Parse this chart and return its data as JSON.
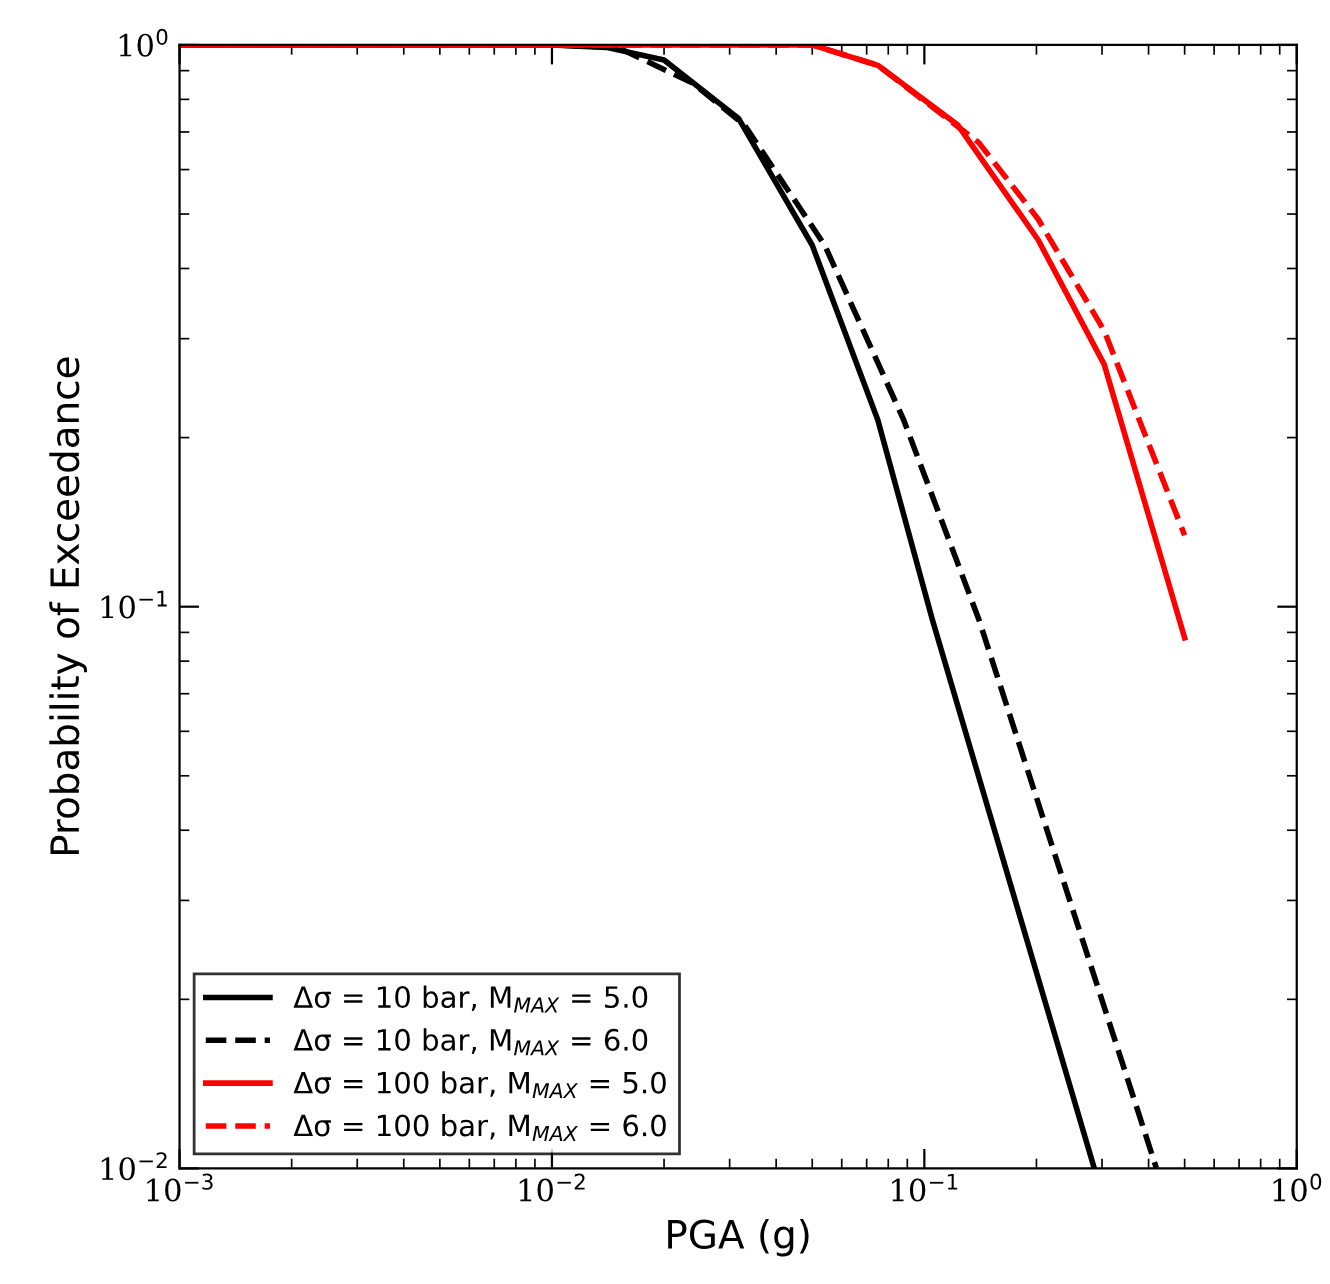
{
  "chart_data": {
    "type": "line",
    "xlabel": "PGA (g)",
    "ylabel": "Probability of Exceedance",
    "log": "xy",
    "xlim": [
      0.001,
      1
    ],
    "ylim": [
      0.01,
      1
    ],
    "xticks": [
      {
        "value": 0.001,
        "label": "10$^{−3}$"
      },
      {
        "value": 0.01,
        "label": "10$^{−2}$"
      },
      {
        "value": 0.1,
        "label": "10$^{−1}$"
      },
      {
        "value": 1,
        "label": "10$^{0}$"
      }
    ],
    "yticks": [
      {
        "value": 0.01,
        "label": "10$^{−2}$"
      },
      {
        "value": 0.1,
        "label": "10$^{−1}$"
      },
      {
        "value": 1,
        "label": "10$^{0}$"
      }
    ],
    "grid": false,
    "legend": "bottom left",
    "series": [
      {
        "name": "Δσ = 10 bar, M$_{MAX}$ = 5.0",
        "color": "#000000",
        "line_style": "solid",
        "x": [
          0.001,
          0.01,
          0.014,
          0.02,
          0.0317,
          0.05,
          0.075,
          0.105,
          0.286
        ],
        "values": [
          1,
          1,
          0.99,
          0.94,
          0.74,
          0.44,
          0.215,
          0.095,
          0.01
        ]
      },
      {
        "name": "Δσ = 10 bar, M$_{MAX}$ = 6.0",
        "color": "#000000",
        "line_style": "dashed",
        "x": [
          0.001,
          0.01,
          0.015,
          0.0239,
          0.0329,
          0.054,
          0.088,
          0.14,
          0.42
        ],
        "values": [
          1,
          1,
          0.99,
          0.855,
          0.72,
          0.44,
          0.215,
          0.095,
          0.01
        ]
      },
      {
        "name": "Δσ = 100 bar, M$_{MAX}$ = 5.0",
        "color": "#ff0000",
        "line_style": "solid",
        "x": [
          0.001,
          0.01,
          0.05,
          0.075,
          0.123,
          0.202,
          0.304,
          0.5
        ],
        "values": [
          1,
          1,
          1,
          0.92,
          0.72,
          0.45,
          0.27,
          0.088
        ]
      },
      {
        "name": "Δσ = 100 bar, M$_{MAX}$ = 6.0",
        "color": "#ff0000",
        "line_style": "dashed",
        "x": [
          0.001,
          0.01,
          0.05,
          0.075,
          0.14,
          0.202,
          0.304,
          0.5
        ],
        "values": [
          1,
          1,
          1,
          0.92,
          0.67,
          0.49,
          0.31,
          0.134
        ]
      }
    ]
  }
}
